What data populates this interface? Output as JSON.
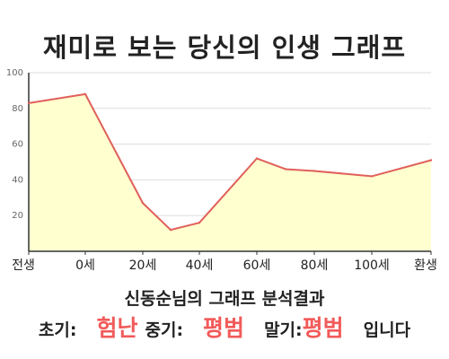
{
  "title": "재미로 보는 당신의 인생 그래프",
  "summary": "신동순님의 그래프 분석결과",
  "result": {
    "early_label": "초기:",
    "early_value": "험난",
    "mid_label": "중기:",
    "mid_value": "평범",
    "late_label": "말기:",
    "late_value": "평범",
    "suffix": "입니다"
  },
  "colors": {
    "line": "#e0605a",
    "fill": "#ffffd0",
    "highlight": "#f25a5a",
    "axis": "#333333",
    "grid": "#dddddd"
  },
  "chart_data": {
    "type": "area",
    "title": "재미로 보는 당신의 인생 그래프",
    "xlabel": "",
    "ylabel": "",
    "x_tick_labels": [
      "전생",
      "0세",
      "20세",
      "40세",
      "60세",
      "80세",
      "100세",
      "환생"
    ],
    "y_ticks": [
      20,
      40,
      60,
      80,
      100
    ],
    "ylim": [
      0,
      100
    ],
    "grid": true,
    "series": [
      {
        "points": [
          {
            "x": "전생",
            "y": 83
          },
          {
            "x": "0세",
            "y": 88
          },
          {
            "x": "20세",
            "y": 27
          },
          {
            "x": "30세",
            "y": 12
          },
          {
            "x": "40세",
            "y": 16
          },
          {
            "x": "60세",
            "y": 52
          },
          {
            "x": "70세",
            "y": 46
          },
          {
            "x": "80세",
            "y": 45
          },
          {
            "x": "100세",
            "y": 42
          },
          {
            "x": "환생",
            "y": 51
          }
        ]
      }
    ]
  }
}
